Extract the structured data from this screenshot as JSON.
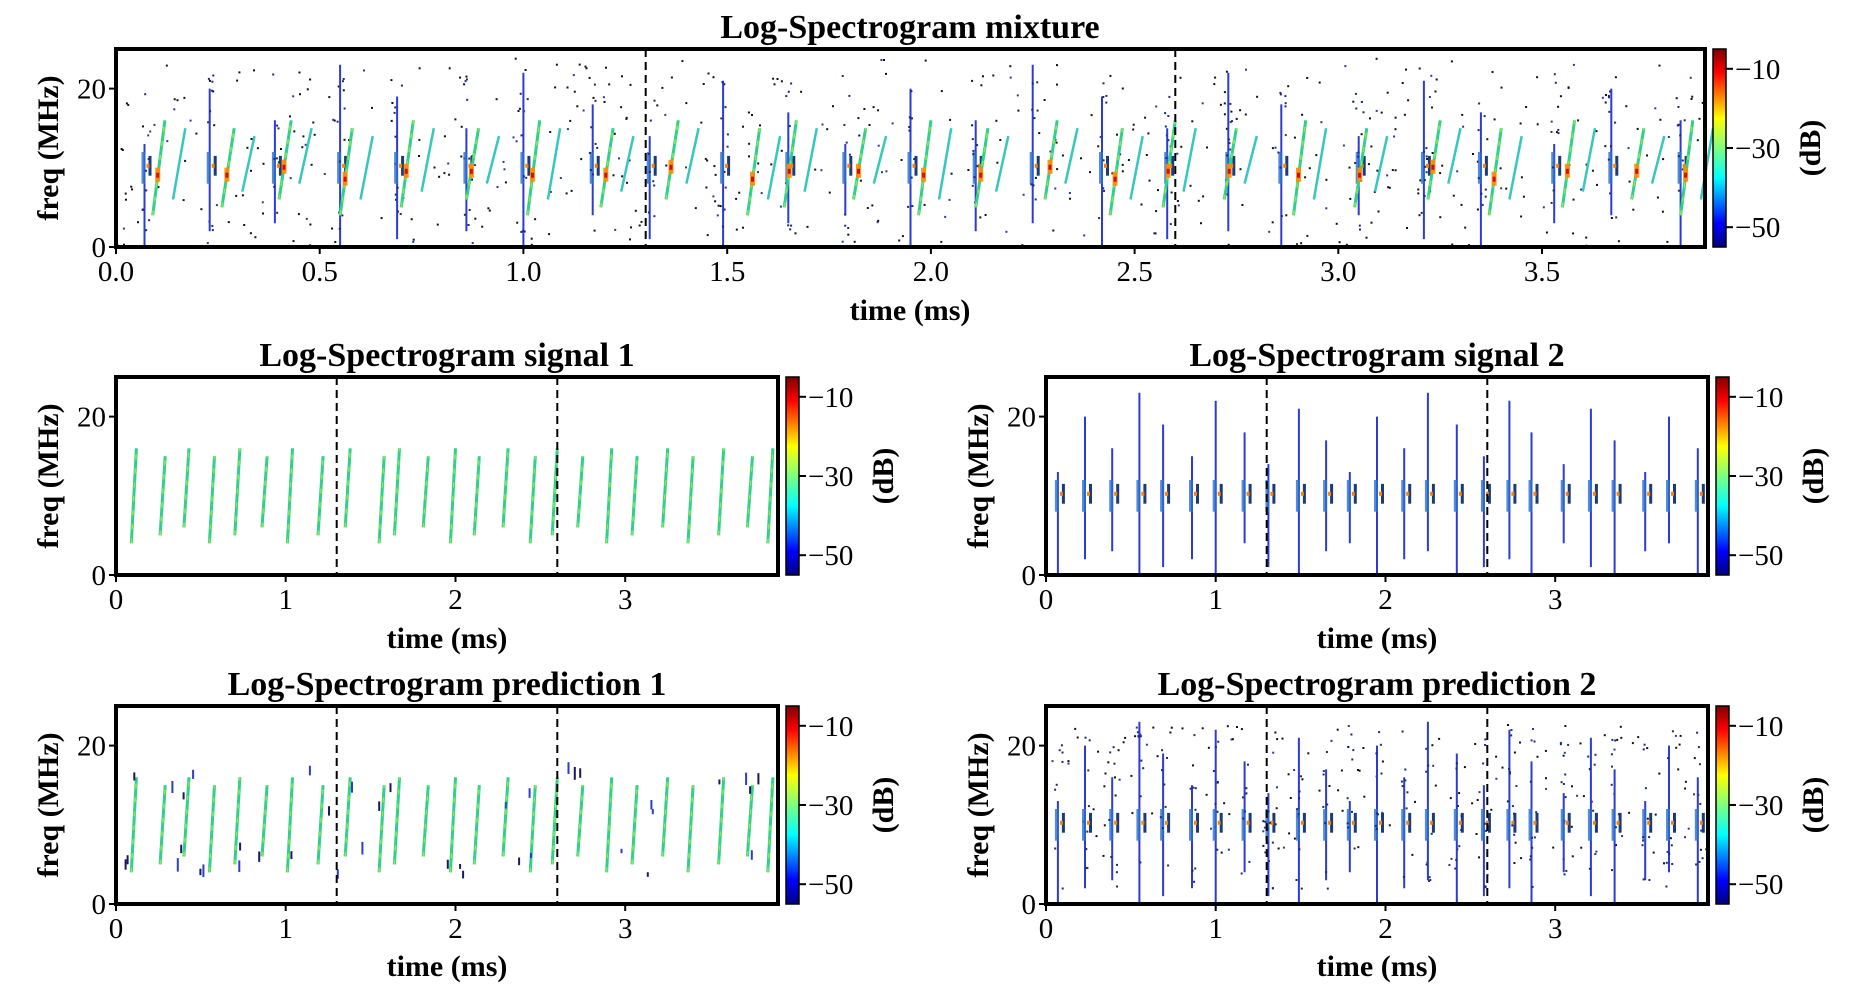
{
  "chart_data": [
    {
      "id": "mixture",
      "type": "heatmap",
      "title": "Log-Spectrogram mixture",
      "xlabel": "time (ms)",
      "ylabel": "freq (MHz)",
      "xlim": [
        0,
        3.9
      ],
      "ylim": [
        0,
        25
      ],
      "xticks": [
        "0.0",
        "0.5",
        "1.0",
        "1.5",
        "2.0",
        "2.5",
        "3.0",
        "3.5"
      ],
      "xtick_values": [
        0,
        0.5,
        1.0,
        1.5,
        2.0,
        2.5,
        3.0,
        3.5
      ],
      "yticks": [
        "0",
        "20"
      ],
      "ytick_values": [
        0,
        20
      ],
      "dashed_lines_ms": [
        1.3,
        2.6
      ],
      "colorbar": {
        "label": "(dB)",
        "ticks": [
          "−10",
          "−30",
          "−50"
        ],
        "tick_values": [
          -10,
          -30,
          -50
        ],
        "range": [
          -55,
          -5
        ]
      },
      "components": [
        "chirps",
        "pulses",
        "noise"
      ]
    },
    {
      "id": "signal1",
      "type": "heatmap",
      "title": "Log-Spectrogram signal 1",
      "xlabel": "time (ms)",
      "ylabel": "freq (MHz)",
      "xlim": [
        0,
        3.9
      ],
      "ylim": [
        0,
        25
      ],
      "xticks": [
        "0",
        "1",
        "2",
        "3"
      ],
      "xtick_values": [
        0,
        1,
        2,
        3
      ],
      "yticks": [
        "0",
        "20"
      ],
      "ytick_values": [
        0,
        20
      ],
      "dashed_lines_ms": [
        1.3,
        2.6
      ],
      "colorbar": {
        "label": "(dB)",
        "ticks": [
          "−10",
          "−30",
          "−50"
        ],
        "tick_values": [
          -10,
          -30,
          -50
        ],
        "range": [
          -55,
          -5
        ]
      },
      "components": [
        "chirps"
      ]
    },
    {
      "id": "signal2",
      "type": "heatmap",
      "title": "Log-Spectrogram signal 2",
      "xlabel": "time (ms)",
      "ylabel": "freq (MHz)",
      "xlim": [
        0,
        3.9
      ],
      "ylim": [
        0,
        25
      ],
      "xticks": [
        "0",
        "1",
        "2",
        "3"
      ],
      "xtick_values": [
        0,
        1,
        2,
        3
      ],
      "yticks": [
        "0",
        "20"
      ],
      "ytick_values": [
        0,
        20
      ],
      "dashed_lines_ms": [
        1.3,
        2.6
      ],
      "colorbar": {
        "label": "(dB)",
        "ticks": [
          "−10",
          "−30",
          "−50"
        ],
        "tick_values": [
          -10,
          -30,
          -50
        ],
        "range": [
          -55,
          -5
        ]
      },
      "components": [
        "pulses"
      ]
    },
    {
      "id": "prediction1",
      "type": "heatmap",
      "title": "Log-Spectrogram prediction 1",
      "xlabel": "time (ms)",
      "ylabel": "freq (MHz)",
      "xlim": [
        0,
        3.9
      ],
      "ylim": [
        0,
        25
      ],
      "xticks": [
        "0",
        "1",
        "2",
        "3"
      ],
      "xtick_values": [
        0,
        1,
        2,
        3
      ],
      "yticks": [
        "0",
        "20"
      ],
      "ytick_values": [
        0,
        20
      ],
      "dashed_lines_ms": [
        1.3,
        2.6
      ],
      "colorbar": {
        "label": "(dB)",
        "ticks": [
          "−10",
          "−30",
          "−50"
        ],
        "tick_values": [
          -10,
          -30,
          -50
        ],
        "range": [
          -55,
          -5
        ]
      },
      "components": [
        "chirps",
        "artifacts"
      ]
    },
    {
      "id": "prediction2",
      "type": "heatmap",
      "title": "Log-Spectrogram prediction 2",
      "xlabel": "time (ms)",
      "ylabel": "freq (MHz)",
      "xlim": [
        0,
        3.9
      ],
      "ylim": [
        0,
        25
      ],
      "xticks": [
        "0",
        "1",
        "2",
        "3"
      ],
      "xtick_values": [
        0,
        1,
        2,
        3
      ],
      "yticks": [
        "0",
        "20"
      ],
      "ytick_values": [
        0,
        20
      ],
      "dashed_lines_ms": [
        1.3,
        2.6
      ],
      "colorbar": {
        "label": "(dB)",
        "ticks": [
          "−10",
          "−30",
          "−50"
        ],
        "tick_values": [
          -10,
          -30,
          -50
        ],
        "range": [
          -55,
          -5
        ]
      },
      "components": [
        "pulses",
        "noise"
      ]
    }
  ],
  "signals": {
    "chirp_times_ms": [
      0.09,
      0.26,
      0.4,
      0.55,
      0.7,
      0.86,
      1.01,
      1.19,
      1.35,
      1.55,
      1.64,
      1.81,
      1.97,
      2.11,
      2.28,
      2.44,
      2.57,
      2.72,
      2.89,
      3.04,
      3.22,
      3.37,
      3.55,
      3.72,
      3.84
    ],
    "chirp_freq_range_mhz": [
      4,
      16
    ],
    "chirp_duration_ms": 0.03,
    "pulse_times_ms": [
      0.07,
      0.23,
      0.39,
      0.55,
      0.69,
      0.86,
      1.0,
      1.17,
      1.31,
      1.49,
      1.65,
      1.79,
      1.95,
      2.11,
      2.25,
      2.42,
      2.58,
      2.73,
      2.86,
      3.05,
      3.21,
      3.35,
      3.53,
      3.67,
      3.84
    ],
    "pulse_freq_range_mhz": [
      0,
      23
    ],
    "pulse_center_mhz": 10
  }
}
